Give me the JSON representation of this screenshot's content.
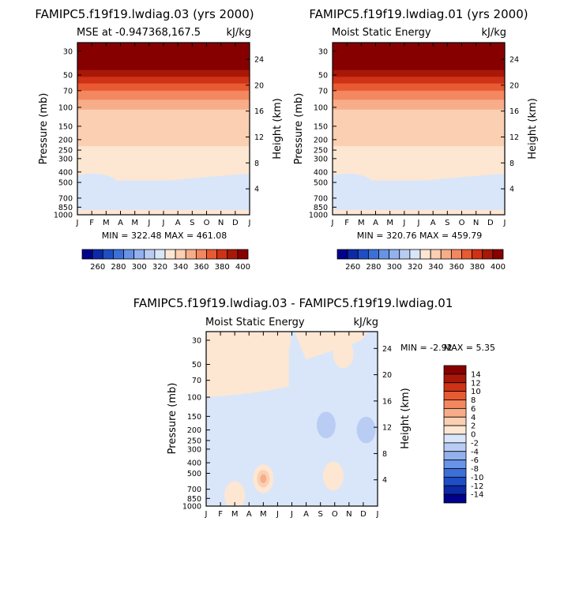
{
  "months": [
    "J",
    "F",
    "M",
    "A",
    "M",
    "J",
    "J",
    "A",
    "S",
    "O",
    "N",
    "D",
    "J"
  ],
  "pressure_ticks": [
    {
      "p": 30,
      "label": "30"
    },
    {
      "p": 50,
      "label": "50"
    },
    {
      "p": 70,
      "label": "70"
    },
    {
      "p": 100,
      "label": "100"
    },
    {
      "p": 150,
      "label": "150"
    },
    {
      "p": 200,
      "label": "200"
    },
    {
      "p": 250,
      "label": "250"
    },
    {
      "p": 300,
      "label": "300"
    },
    {
      "p": 400,
      "label": "400"
    },
    {
      "p": 500,
      "label": "500"
    },
    {
      "p": 700,
      "label": "700"
    },
    {
      "p": 850,
      "label": "850"
    },
    {
      "p": 1000,
      "label": "1000"
    }
  ],
  "height_ticks": [
    {
      "km": 4,
      "label": "4"
    },
    {
      "km": 8,
      "label": "8"
    },
    {
      "km": 12,
      "label": "12"
    },
    {
      "km": 16,
      "label": "16"
    },
    {
      "km": 20,
      "label": "20"
    },
    {
      "km": 24,
      "label": "24"
    }
  ],
  "palette_full": [
    "#00008b",
    "#0c2aa6",
    "#1f4ec4",
    "#3c6fd8",
    "#6893e6",
    "#93b1ee",
    "#b9cdf4",
    "#d9e6f9",
    "#fde7d3",
    "#fbcfb2",
    "#f7ad8a",
    "#f3875f",
    "#e85a32",
    "#cf3216",
    "#a81808",
    "#870000"
  ],
  "palette_diff": [
    "#00008b",
    "#0c2aa6",
    "#1f4ec4",
    "#3c6fd8",
    "#6893e6",
    "#93b1ee",
    "#b9cdf4",
    "#d9e6f9",
    "#fde7d3",
    "#fbcfb2",
    "#f7ad8a",
    "#f3875f",
    "#e85a32",
    "#cf3216",
    "#a81808",
    "#870000"
  ],
  "chart_data": [
    {
      "type": "heatmap",
      "title": "FAMIPC5.f19f19.lwdiag.03 (yrs 2000)",
      "subtitle_left": "MSE at -0.947368,167.5",
      "subtitle_right": "kJ/kg",
      "xlabel": "",
      "ylabel": "Pressure (mb)",
      "ylabel_right": "Height (km)",
      "ylim": [
        1000,
        25
      ],
      "stats": "MIN = 322.48  MAX = 461.08",
      "colorbar_labels": [
        "260",
        "280",
        "300",
        "320",
        "340",
        "360",
        "380",
        "400"
      ],
      "levels": [
        250,
        260,
        270,
        280,
        290,
        300,
        310,
        320,
        330,
        340,
        350,
        360,
        370,
        380,
        390,
        400
      ],
      "bands": [
        {
          "p": 25,
          "value": 420
        },
        {
          "p": 40,
          "value": 410
        },
        {
          "p": 45,
          "value": 395
        },
        {
          "p": 52,
          "value": 385
        },
        {
          "p": 60,
          "value": 375
        },
        {
          "p": 70,
          "value": 365
        },
        {
          "p": 85,
          "value": 355
        },
        {
          "p": 105,
          "value": 345
        },
        {
          "p": 230,
          "value": 335
        },
        {
          "p": 480,
          "value": 325
        },
        {
          "p": 720,
          "value": 325
        },
        {
          "p": 1000,
          "value": 335
        }
      ]
    },
    {
      "type": "heatmap",
      "title": "FAMIPC5.f19f19.lwdiag.01 (yrs 2000)",
      "subtitle_left": "Moist Static Energy",
      "subtitle_right": "kJ/kg",
      "xlabel": "",
      "ylabel": "Pressure (mb)",
      "ylabel_right": "Height (km)",
      "ylim": [
        1000,
        25
      ],
      "stats": "MIN = 320.76  MAX = 459.79",
      "colorbar_labels": [
        "260",
        "280",
        "300",
        "320",
        "340",
        "360",
        "380",
        "400"
      ],
      "levels": [
        250,
        260,
        270,
        280,
        290,
        300,
        310,
        320,
        330,
        340,
        350,
        360,
        370,
        380,
        390,
        400
      ],
      "bands": [
        {
          "p": 25,
          "value": 420
        },
        {
          "p": 40,
          "value": 410
        },
        {
          "p": 45,
          "value": 395
        },
        {
          "p": 52,
          "value": 385
        },
        {
          "p": 60,
          "value": 375
        },
        {
          "p": 70,
          "value": 365
        },
        {
          "p": 85,
          "value": 355
        },
        {
          "p": 105,
          "value": 345
        },
        {
          "p": 230,
          "value": 335
        },
        {
          "p": 480,
          "value": 325
        },
        {
          "p": 720,
          "value": 325
        },
        {
          "p": 1000,
          "value": 335
        }
      ]
    },
    {
      "type": "heatmap",
      "title": "FAMIPC5.f19f19.lwdiag.03 - FAMIPC5.f19f19.lwdiag.01",
      "subtitle_left": "Moist Static Energy",
      "subtitle_right": "kJ/kg",
      "xlabel": "",
      "ylabel": "Pressure (mb)",
      "ylabel_right": "Height (km)",
      "ylim": [
        1000,
        25
      ],
      "stats_min": "MIN =   -2.92",
      "stats_max": "MAX =    5.35",
      "colorbar_labels": [
        "14",
        "12",
        "10",
        "8",
        "6",
        "4",
        "2",
        "0",
        "-2",
        "-4",
        "-6",
        "-8",
        "-10",
        "-12",
        "-14"
      ],
      "levels": [
        -16,
        -14,
        -12,
        -10,
        -8,
        -6,
        -4,
        -2,
        0,
        2,
        4,
        6,
        8,
        10,
        12,
        14
      ],
      "background_value": -1,
      "features": [
        {
          "month": 2.0,
          "p": 800,
          "value": 1
        },
        {
          "month": 4.0,
          "p": 560,
          "value": 1
        },
        {
          "month": 4.0,
          "p": 560,
          "value": 3
        },
        {
          "month": 4.0,
          "p": 560,
          "value": 5
        },
        {
          "month": 8.9,
          "p": 530,
          "value": 1
        },
        {
          "month": 3.8,
          "p": 55,
          "value": 1
        },
        {
          "month": 5.2,
          "p": 30,
          "value": 1
        },
        {
          "month": 9.6,
          "p": 40,
          "value": 1
        },
        {
          "month": 8.4,
          "p": 180,
          "value": -3
        },
        {
          "month": 11.2,
          "p": 200,
          "value": -3
        }
      ]
    }
  ]
}
